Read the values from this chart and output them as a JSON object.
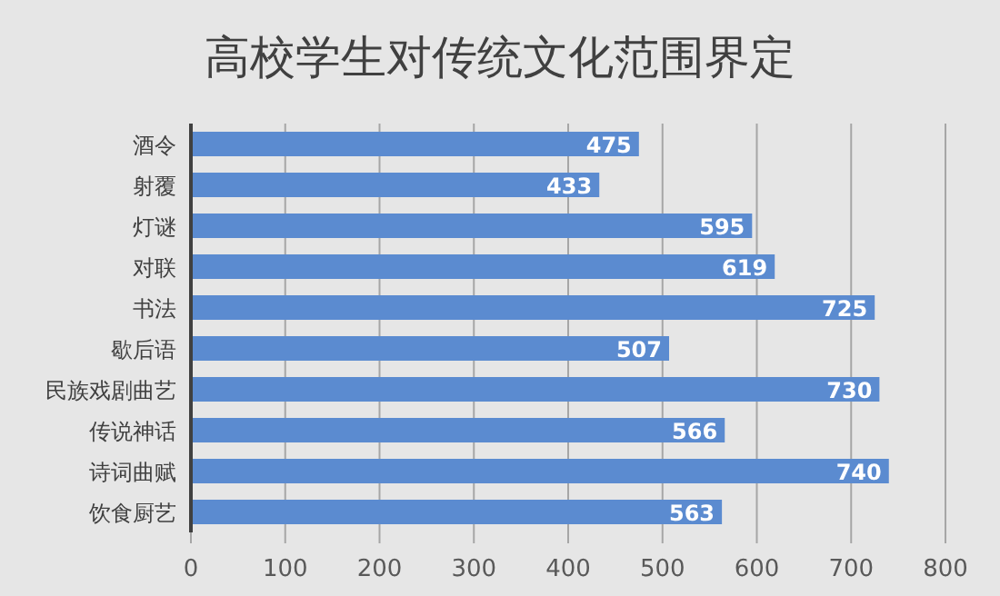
{
  "chart_data": {
    "type": "bar",
    "orientation": "horizontal",
    "title": "高校学生对传统文化范围界定",
    "categories": [
      "酒令",
      "射覆",
      "灯谜",
      "对联",
      "书法",
      "歇后语",
      "民族戏剧曲艺",
      "传说神话",
      "诗词曲赋",
      "饮食厨艺"
    ],
    "values": [
      475,
      433,
      595,
      619,
      725,
      507,
      730,
      566,
      740,
      563
    ],
    "color": "#5b8bd0",
    "xlim": [
      0,
      800
    ],
    "xticks": [
      0,
      100,
      200,
      300,
      400,
      500,
      600,
      700,
      800
    ],
    "grid": "x",
    "data_labels": true
  }
}
